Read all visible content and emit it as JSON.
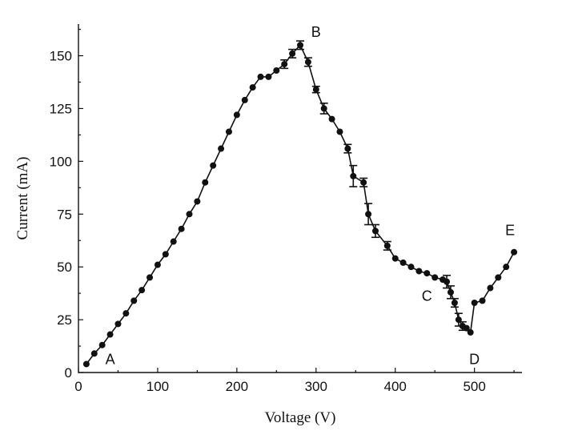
{
  "chart_data": {
    "type": "line",
    "xlabel": "Voltage (V)",
    "ylabel": "Current (mA)",
    "xlim": [
      0,
      560
    ],
    "ylim": [
      0,
      165
    ],
    "x_ticks": [
      0,
      100,
      200,
      300,
      400,
      500
    ],
    "y_ticks": [
      0,
      25,
      50,
      75,
      100,
      125,
      150
    ],
    "grid": false,
    "series": [
      {
        "marker": "filled-circle",
        "color": "#111111",
        "points": [
          {
            "x": 10,
            "y": 4
          },
          {
            "x": 20,
            "y": 9
          },
          {
            "x": 30,
            "y": 13
          },
          {
            "x": 40,
            "y": 18
          },
          {
            "x": 50,
            "y": 23
          },
          {
            "x": 60,
            "y": 28
          },
          {
            "x": 70,
            "y": 34
          },
          {
            "x": 80,
            "y": 39
          },
          {
            "x": 90,
            "y": 45
          },
          {
            "x": 100,
            "y": 51
          },
          {
            "x": 110,
            "y": 56
          },
          {
            "x": 120,
            "y": 62
          },
          {
            "x": 130,
            "y": 68
          },
          {
            "x": 140,
            "y": 75
          },
          {
            "x": 150,
            "y": 81
          },
          {
            "x": 160,
            "y": 90
          },
          {
            "x": 170,
            "y": 98
          },
          {
            "x": 180,
            "y": 106
          },
          {
            "x": 190,
            "y": 114
          },
          {
            "x": 200,
            "y": 122
          },
          {
            "x": 210,
            "y": 129
          },
          {
            "x": 220,
            "y": 135
          },
          {
            "x": 230,
            "y": 140
          },
          {
            "x": 240,
            "y": 140
          },
          {
            "x": 250,
            "y": 143
          },
          {
            "x": 260,
            "y": 146,
            "err": 2
          },
          {
            "x": 270,
            "y": 151,
            "err": 2
          },
          {
            "x": 280,
            "y": 155,
            "err": 2
          },
          {
            "x": 290,
            "y": 147,
            "err": 2
          },
          {
            "x": 300,
            "y": 134,
            "err": 1.5
          },
          {
            "x": 310,
            "y": 125,
            "err": 2.5
          },
          {
            "x": 320,
            "y": 120
          },
          {
            "x": 330,
            "y": 114
          },
          {
            "x": 340,
            "y": 106,
            "err": 2
          },
          {
            "x": 347,
            "y": 93,
            "err": 5
          },
          {
            "x": 360,
            "y": 90,
            "err": 2
          },
          {
            "x": 366,
            "y": 75,
            "err": 5
          },
          {
            "x": 375,
            "y": 67,
            "err": 3
          },
          {
            "x": 390,
            "y": 60,
            "err": 2
          },
          {
            "x": 400,
            "y": 54
          },
          {
            "x": 410,
            "y": 52
          },
          {
            "x": 420,
            "y": 50
          },
          {
            "x": 430,
            "y": 48
          },
          {
            "x": 440,
            "y": 47
          },
          {
            "x": 450,
            "y": 45
          },
          {
            "x": 460,
            "y": 44
          },
          {
            "x": 465,
            "y": 43,
            "err": 3
          },
          {
            "x": 470,
            "y": 38,
            "err": 3
          },
          {
            "x": 475,
            "y": 33,
            "err": 2
          },
          {
            "x": 480,
            "y": 25,
            "err": 3
          },
          {
            "x": 485,
            "y": 22,
            "err": 2
          },
          {
            "x": 490,
            "y": 21
          },
          {
            "x": 495,
            "y": 19
          },
          {
            "x": 500,
            "y": 33
          },
          {
            "x": 510,
            "y": 34
          },
          {
            "x": 520,
            "y": 40
          },
          {
            "x": 530,
            "y": 45
          },
          {
            "x": 540,
            "y": 50
          },
          {
            "x": 550,
            "y": 57
          }
        ]
      }
    ],
    "annotations": [
      {
        "text": "A",
        "x": 40,
        "y": 4
      },
      {
        "text": "B",
        "x": 300,
        "y": 159
      },
      {
        "text": "C",
        "x": 440,
        "y": 34
      },
      {
        "text": "D",
        "x": 500,
        "y": 4
      },
      {
        "text": "E",
        "x": 545,
        "y": 65
      }
    ]
  }
}
